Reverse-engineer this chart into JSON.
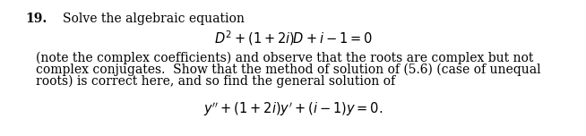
{
  "figsize": [
    6.54,
    1.52
  ],
  "dpi": 100,
  "bg_color": "#ffffff",
  "number": "19.",
  "number_fontsize": 10,
  "title_text": "Solve the algebraic equation",
  "title_fontsize": 10,
  "eq1_text": "$D^2 + (1+2i)D + i - 1 = 0$",
  "eq1_fontsize": 10.5,
  "body_lines": [
    "(note the complex coefficients) and observe that the roots are complex but not",
    "complex conjugates.  Show that the method of solution of (5.6) (case of unequal",
    "roots) is correct here, and so find the general solution of"
  ],
  "body_fontsize": 10,
  "eq2_text": "$y'' + (1+2i)y' + (i-1)y = 0.$",
  "eq2_fontsize": 10.5,
  "text_color": "#000000"
}
